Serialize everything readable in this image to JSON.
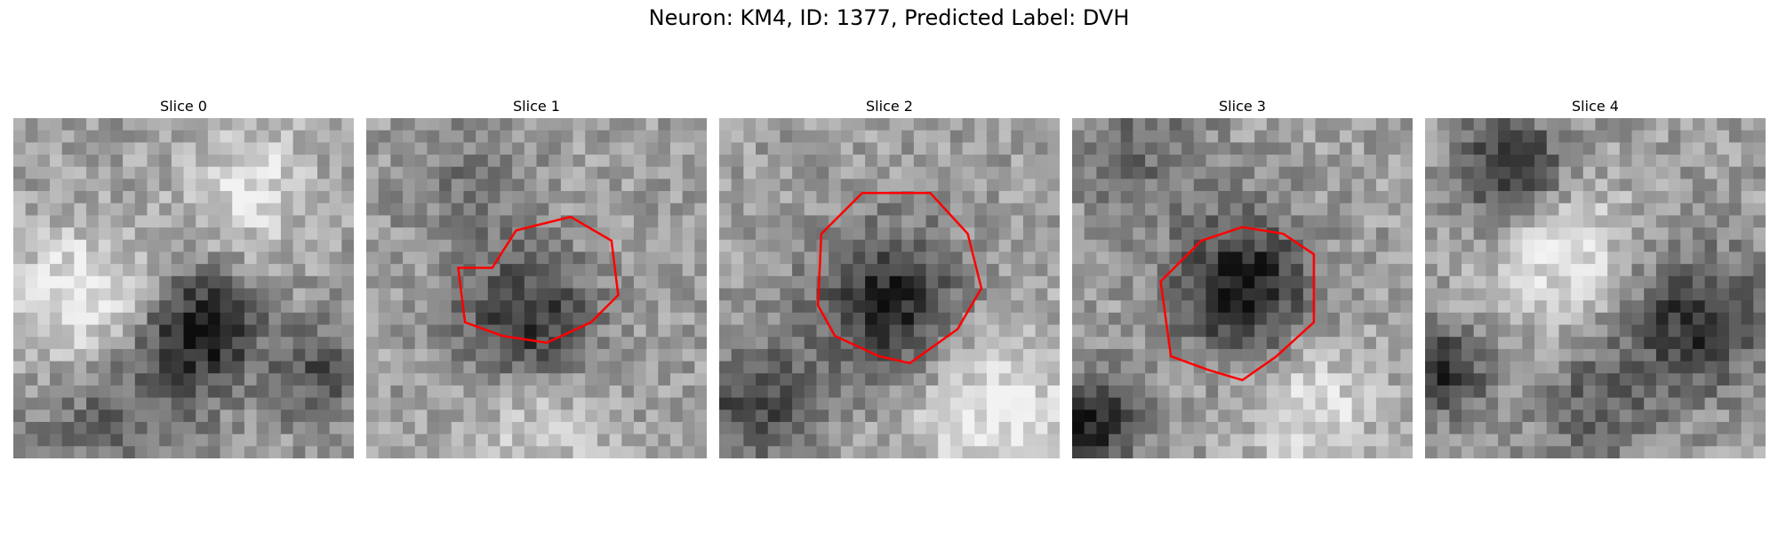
{
  "figure": {
    "title": "Neuron: KM4, ID: 1377, Predicted Label: DVH",
    "slices": [
      {
        "label": "Slice 0",
        "has_outline": false
      },
      {
        "label": "Slice 1",
        "has_outline": true
      },
      {
        "label": "Slice 2",
        "has_outline": true
      },
      {
        "label": "Slice 3",
        "has_outline": true
      },
      {
        "label": "Slice 4",
        "has_outline": false
      }
    ]
  },
  "colors": {
    "outline": "#ff0000",
    "background": "#ffffff"
  },
  "image_style": "grayscale microscopy patch (pixelated)"
}
